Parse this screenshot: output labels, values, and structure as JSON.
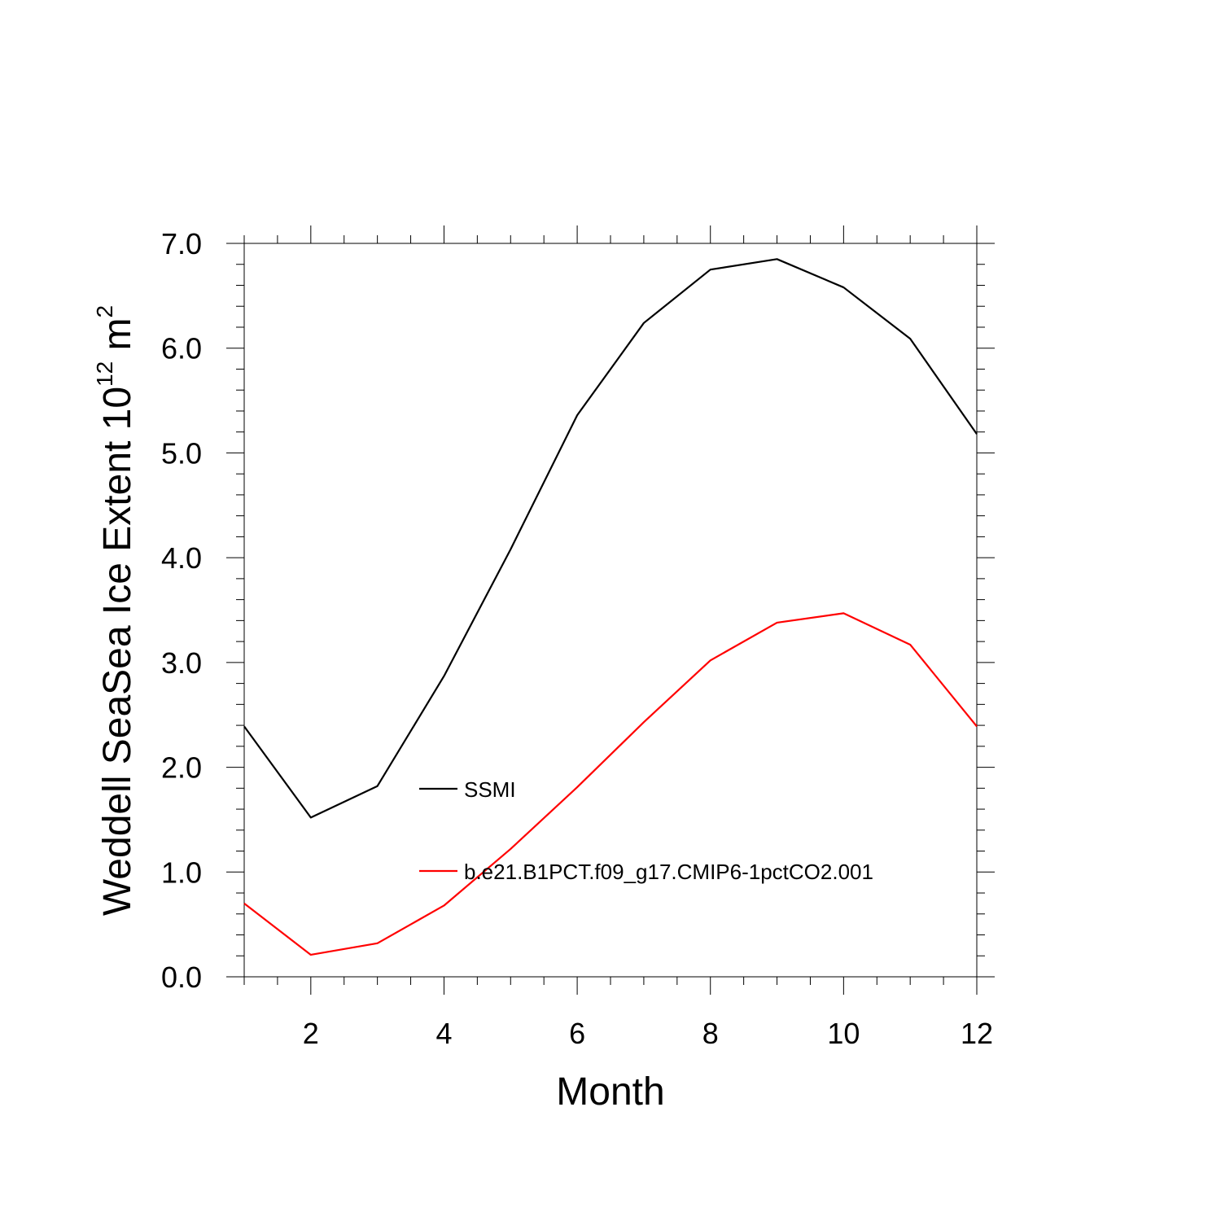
{
  "chart_data": {
    "type": "line",
    "xlabel": "Month",
    "ylabel": {
      "text": "Weddell SeaSea Ice Extent 10",
      "superscript": "12",
      "unit": " m",
      "unit_superscript": "2"
    },
    "xlim": [
      1,
      12
    ],
    "ylim": [
      0,
      7
    ],
    "x": [
      1,
      2,
      3,
      4,
      5,
      6,
      7,
      8,
      9,
      10,
      11,
      12
    ],
    "x_ticks": [
      2,
      4,
      6,
      8,
      10,
      12
    ],
    "x_tick_labels": [
      "2",
      "4",
      "6",
      "8",
      "10",
      "12"
    ],
    "y_ticks": [
      0,
      1,
      2,
      3,
      4,
      5,
      6,
      7
    ],
    "y_tick_labels": [
      "0.0",
      "1.0",
      "2.0",
      "3.0",
      "4.0",
      "5.0",
      "6.0",
      "7.0"
    ],
    "grid": false,
    "legend_position": "center",
    "series": [
      {
        "name": "SSMI",
        "color": "#000000",
        "values": [
          2.39,
          1.52,
          1.82,
          2.87,
          4.08,
          5.36,
          6.24,
          6.75,
          6.85,
          6.58,
          6.09,
          5.18
        ]
      },
      {
        "name": "b.e21.B1PCT.f09_g17.CMIP6-1pctCO2.001",
        "color": "#ff0000",
        "values": [
          0.7,
          0.21,
          0.32,
          0.68,
          1.22,
          1.81,
          2.43,
          3.02,
          3.38,
          3.47,
          3.17,
          2.39
        ]
      }
    ]
  }
}
